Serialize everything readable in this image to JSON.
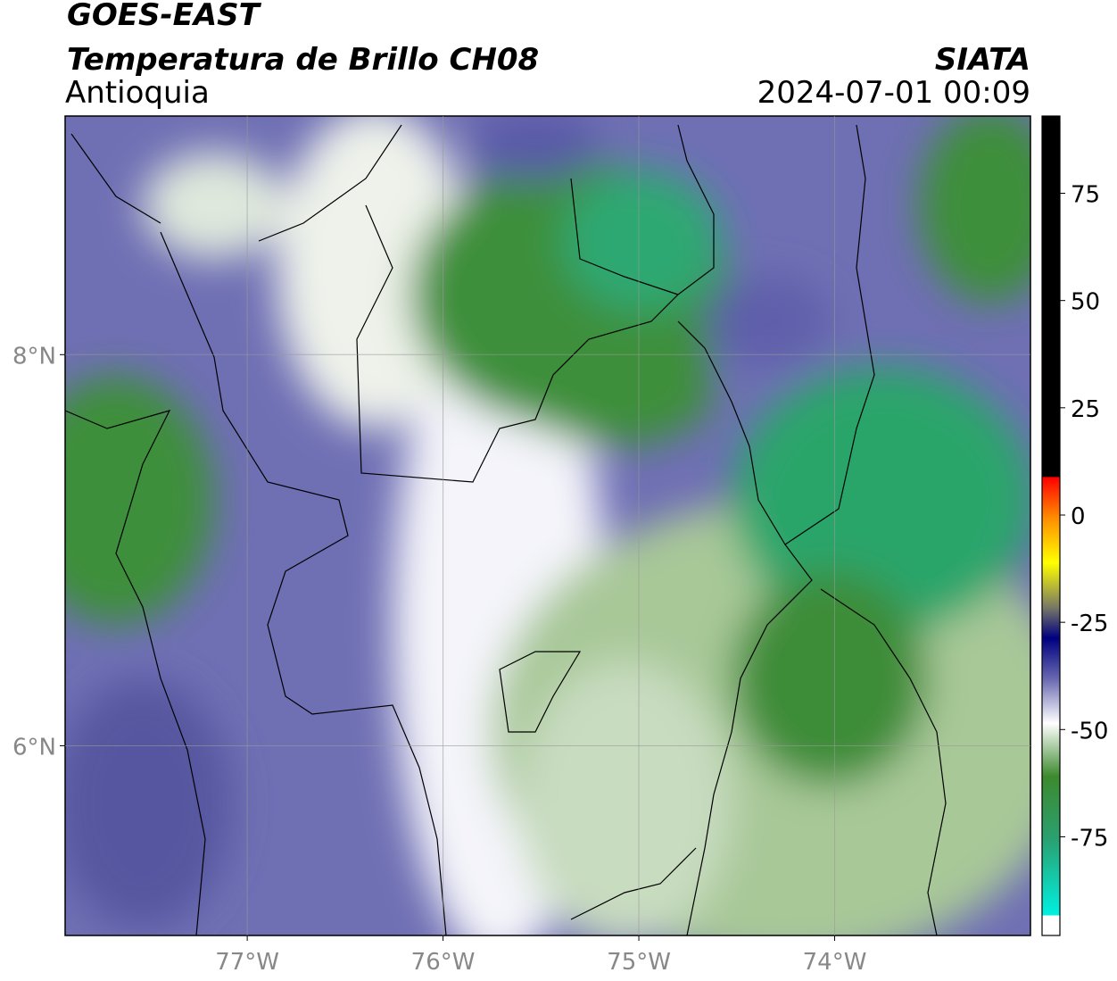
{
  "header": {
    "title": "GOES-EAST",
    "subtitle": "Temperatura de Brillo CH08",
    "region": "Antioquia",
    "agency": "SIATA",
    "timestamp": "2024-07-01 00:09"
  },
  "map": {
    "xlim": [
      -77.93,
      -73.0
    ],
    "ylim": [
      5.03,
      9.22
    ],
    "xticks": [
      {
        "value": -77,
        "label": "77°W"
      },
      {
        "value": -76,
        "label": "76°W"
      },
      {
        "value": -75,
        "label": "75°W"
      },
      {
        "value": -74,
        "label": "74°W"
      }
    ],
    "yticks": [
      {
        "value": 8,
        "label": "8°N"
      },
      {
        "value": 6,
        "label": "6°N"
      }
    ],
    "grid": true
  },
  "colorbar": {
    "lim": [
      -98,
      93
    ],
    "ticks": [
      75,
      50,
      25,
      0,
      -25,
      -50,
      -75
    ]
  }
}
